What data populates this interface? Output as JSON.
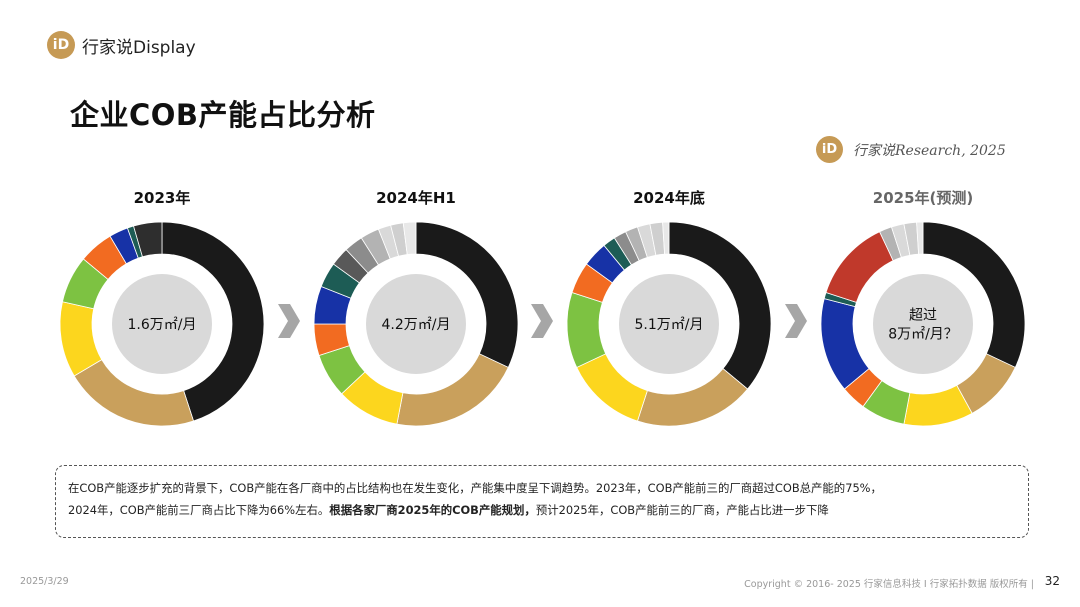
{
  "brand": {
    "logo_glyph": "iD",
    "name": "行家说Display"
  },
  "page_title": "企业COB产能占比分析",
  "research_credit": "行家说Research, 2025",
  "chart_data": [
    {
      "type": "pie",
      "title": "2023年",
      "title_color": "#111111",
      "center_label": [
        "1.6万㎡/月"
      ],
      "slices": [
        {
          "value": 45.0,
          "color": "#1a1a1a"
        },
        {
          "value": 21.5,
          "color": "#c9a05c"
        },
        {
          "value": 12.0,
          "color": "#fcd61e"
        },
        {
          "value": 7.5,
          "color": "#7dc242"
        },
        {
          "value": 5.5,
          "color": "#f26b21"
        },
        {
          "value": 3.0,
          "color": "#1732a6"
        },
        {
          "value": 1.0,
          "color": "#1d5c55"
        },
        {
          "value": 4.5,
          "color": "#2e2e2e"
        }
      ]
    },
    {
      "type": "pie",
      "title": "2024年H1",
      "title_color": "#111111",
      "center_label": [
        "4.2万㎡/月"
      ],
      "slices": [
        {
          "value": 32.0,
          "color": "#1a1a1a"
        },
        {
          "value": 21.0,
          "color": "#c9a05c"
        },
        {
          "value": 10.0,
          "color": "#fcd61e"
        },
        {
          "value": 7.0,
          "color": "#7dc242"
        },
        {
          "value": 5.0,
          "color": "#f26b21"
        },
        {
          "value": 6.0,
          "color": "#1732a6"
        },
        {
          "value": 4.0,
          "color": "#1d5c55"
        },
        {
          "value": 3.0,
          "color": "#595959"
        },
        {
          "value": 3.0,
          "color": "#8c8c8c"
        },
        {
          "value": 3.0,
          "color": "#b3b3b3"
        },
        {
          "value": 2.0,
          "color": "#d9d9d9"
        },
        {
          "value": 2.0,
          "color": "#cfcfcf"
        },
        {
          "value": 2.0,
          "color": "#e8e8e8"
        }
      ]
    },
    {
      "type": "pie",
      "title": "2024年底",
      "title_color": "#111111",
      "center_label": [
        "5.1万㎡/月"
      ],
      "slices": [
        {
          "value": 36.0,
          "color": "#1a1a1a"
        },
        {
          "value": 19.0,
          "color": "#c9a05c"
        },
        {
          "value": 13.0,
          "color": "#fcd61e"
        },
        {
          "value": 12.0,
          "color": "#7dc242"
        },
        {
          "value": 5.0,
          "color": "#f26b21"
        },
        {
          "value": 4.0,
          "color": "#1732a6"
        },
        {
          "value": 2.0,
          "color": "#1d5c55"
        },
        {
          "value": 2.0,
          "color": "#8c8c8c"
        },
        {
          "value": 2.0,
          "color": "#b3b3b3"
        },
        {
          "value": 2.0,
          "color": "#d9d9d9"
        },
        {
          "value": 2.0,
          "color": "#cfcfcf"
        },
        {
          "value": 1.0,
          "color": "#e8e8e8"
        }
      ]
    },
    {
      "type": "pie",
      "title": "2025年(预测)",
      "title_color": "#666666",
      "center_label": [
        "超过",
        "8万㎡/月？"
      ],
      "slices": [
        {
          "value": 32.0,
          "color": "#1a1a1a"
        },
        {
          "value": 10.0,
          "color": "#c9a05c"
        },
        {
          "value": 11.0,
          "color": "#fcd61e"
        },
        {
          "value": 7.0,
          "color": "#7dc242"
        },
        {
          "value": 4.0,
          "color": "#f26b21"
        },
        {
          "value": 15.0,
          "color": "#1732a6"
        },
        {
          "value": 1.0,
          "color": "#1d5c55"
        },
        {
          "value": 13.0,
          "color": "#c0392b"
        },
        {
          "value": 2.0,
          "color": "#b3b3b3"
        },
        {
          "value": 2.0,
          "color": "#d9d9d9"
        },
        {
          "value": 2.0,
          "color": "#cfcfcf"
        },
        {
          "value": 1.0,
          "color": "#e8e8e8"
        }
      ]
    }
  ],
  "summary": {
    "line1": "在COB产能逐步扩充的背景下，COB产能在各厂商中的占比结构也在发生变化，产能集中度呈下调趋势。2023年，COB产能前三的厂商超过COB总产能的75%，",
    "line2_regular": "2024年，COB产能前三厂商占比下降为66%左右。",
    "line2_bold": "根据各家厂商2025年的COB产能规划，",
    "line2_tail": "预计2025年，COB产能前三的厂商，产能占比进一步下降"
  },
  "footer": {
    "date": "2025/3/29",
    "copyright": "Copyright © 2016- 2025 行家信息科技 I 行家拓扑数据 版权所有 |",
    "page_number": "32"
  },
  "colors": {
    "brand_gold": "#c69a55",
    "arrow_gray": "#a6a6a6",
    "center_circle": "#d9d9d9"
  }
}
